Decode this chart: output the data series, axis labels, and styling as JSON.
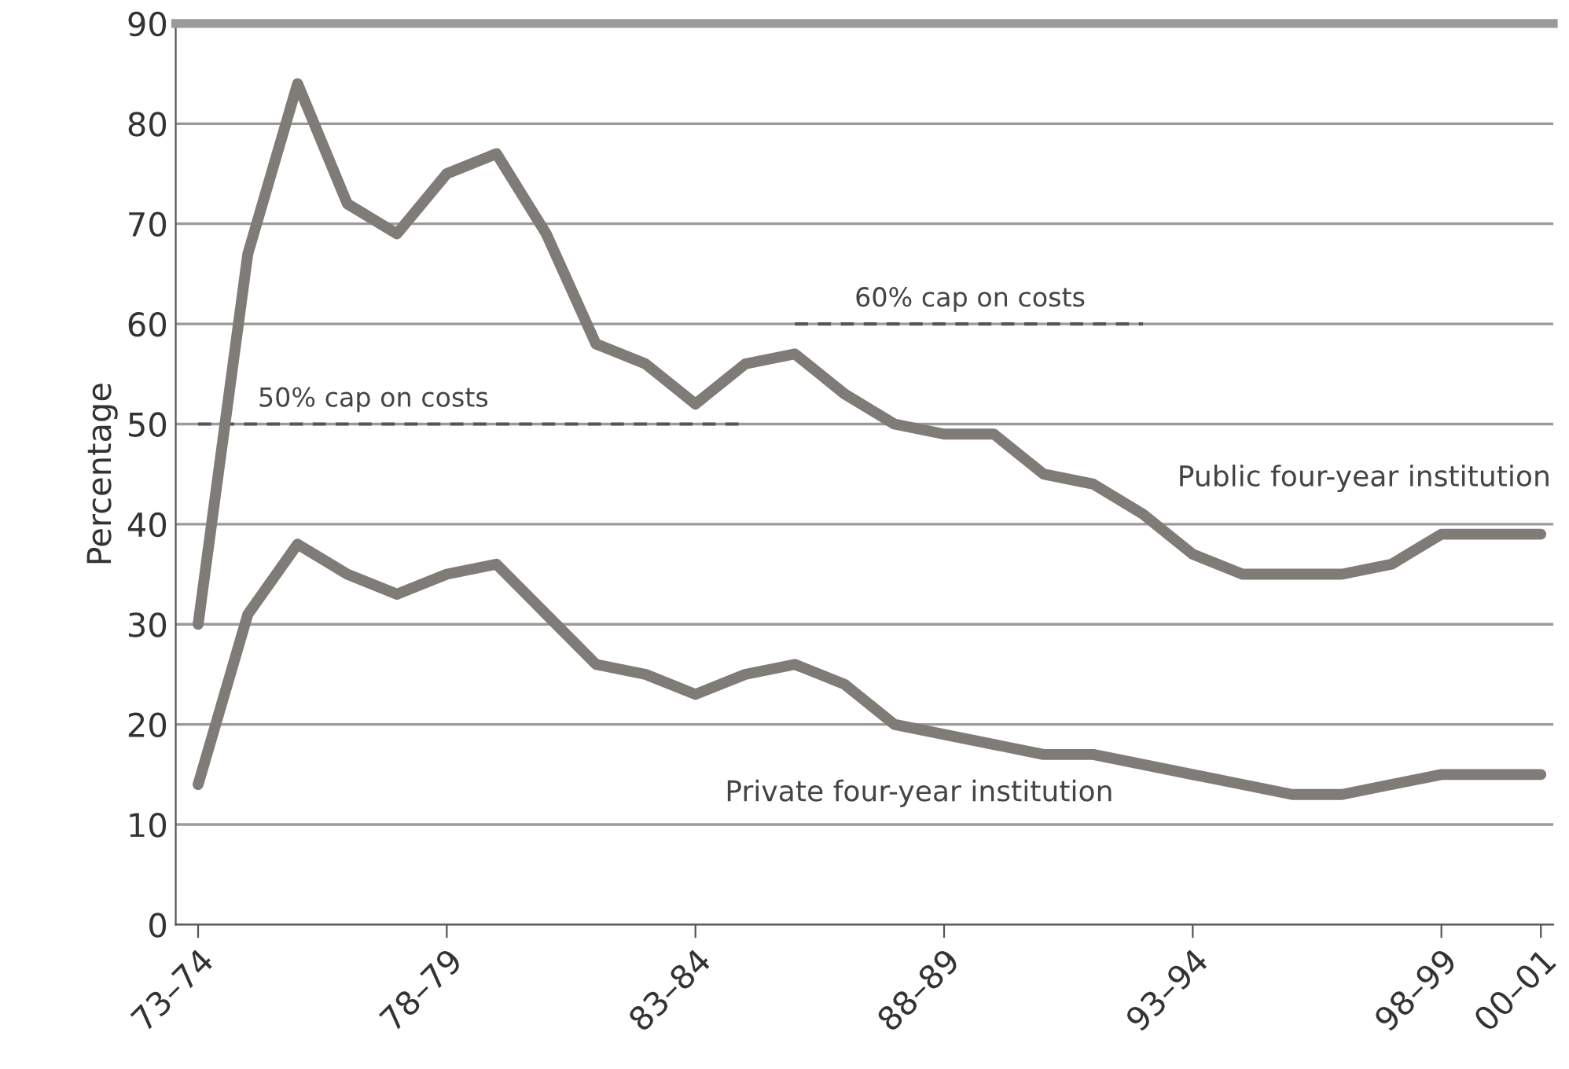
{
  "chart_data": {
    "type": "line",
    "ylabel": "Percentage",
    "categories": [
      "73–74",
      null,
      null,
      null,
      null,
      "78–79",
      null,
      null,
      null,
      null,
      "83–84",
      null,
      null,
      null,
      null,
      "88–89",
      null,
      null,
      null,
      null,
      "93–94",
      null,
      null,
      null,
      null,
      "98–99",
      null,
      "00–01"
    ],
    "series": [
      {
        "name": "Public four-year institution",
        "color": "#7f7b77",
        "values": [
          30,
          67,
          84,
          72,
          69,
          75,
          77,
          69,
          58,
          56,
          52,
          56,
          57,
          53,
          50,
          49,
          49,
          45,
          44,
          41,
          37,
          35,
          35,
          35,
          36,
          39,
          39,
          39
        ]
      },
      {
        "name": "Private four-year institution",
        "color": "#7f7b77",
        "values": [
          14,
          31,
          38,
          35,
          33,
          35,
          36,
          31,
          26,
          25,
          23,
          25,
          26,
          24,
          20,
          19,
          18,
          17,
          17,
          16,
          15,
          14,
          13,
          13,
          14,
          15,
          15,
          15
        ]
      },
      {
        "name": "50% cap on costs",
        "color": "#555555",
        "line_style": "dashed",
        "values": [
          50,
          50,
          50,
          50,
          50,
          50,
          50,
          50,
          50,
          50,
          50,
          50,
          null,
          null,
          null,
          null,
          null,
          null,
          null,
          null,
          null,
          null,
          null,
          null,
          null,
          null,
          null,
          null
        ]
      },
      {
        "name": "60% cap on costs",
        "color": "#555555",
        "line_style": "dashed",
        "values": [
          null,
          null,
          null,
          null,
          null,
          null,
          null,
          null,
          null,
          null,
          null,
          null,
          60,
          60,
          60,
          60,
          60,
          60,
          60,
          60,
          null,
          null,
          null,
          null,
          null,
          null,
          null,
          null
        ]
      }
    ],
    "ylim": [
      0,
      90
    ],
    "yticks": [
      0,
      10,
      20,
      30,
      40,
      50,
      60,
      70,
      80,
      90
    ],
    "grid": "y",
    "legend": false,
    "marker": "none",
    "line_style": "solid"
  }
}
